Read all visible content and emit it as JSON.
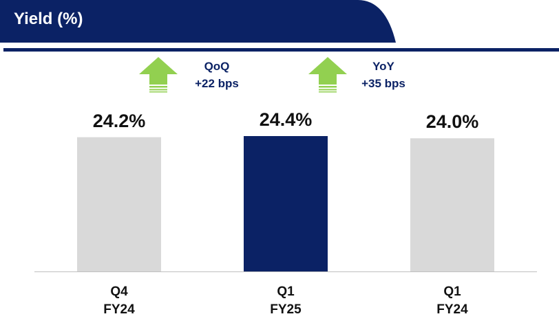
{
  "chart_data": {
    "type": "bar",
    "title": "Yield (%)",
    "categories": [
      "Q4\nFY24",
      "Q1\nFY25",
      "Q1\nFY24"
    ],
    "values": [
      24.2,
      24.4,
      24.0
    ],
    "value_labels": [
      "24.2%",
      "24.4%",
      "24.0%"
    ],
    "colors": [
      "#d9d9d9",
      "#0b2265",
      "#d9d9d9"
    ],
    "annotations": [
      {
        "label": "QoQ",
        "text": "+22 bps"
      },
      {
        "label": "YoY",
        "text": "+35 bps"
      }
    ]
  }
}
